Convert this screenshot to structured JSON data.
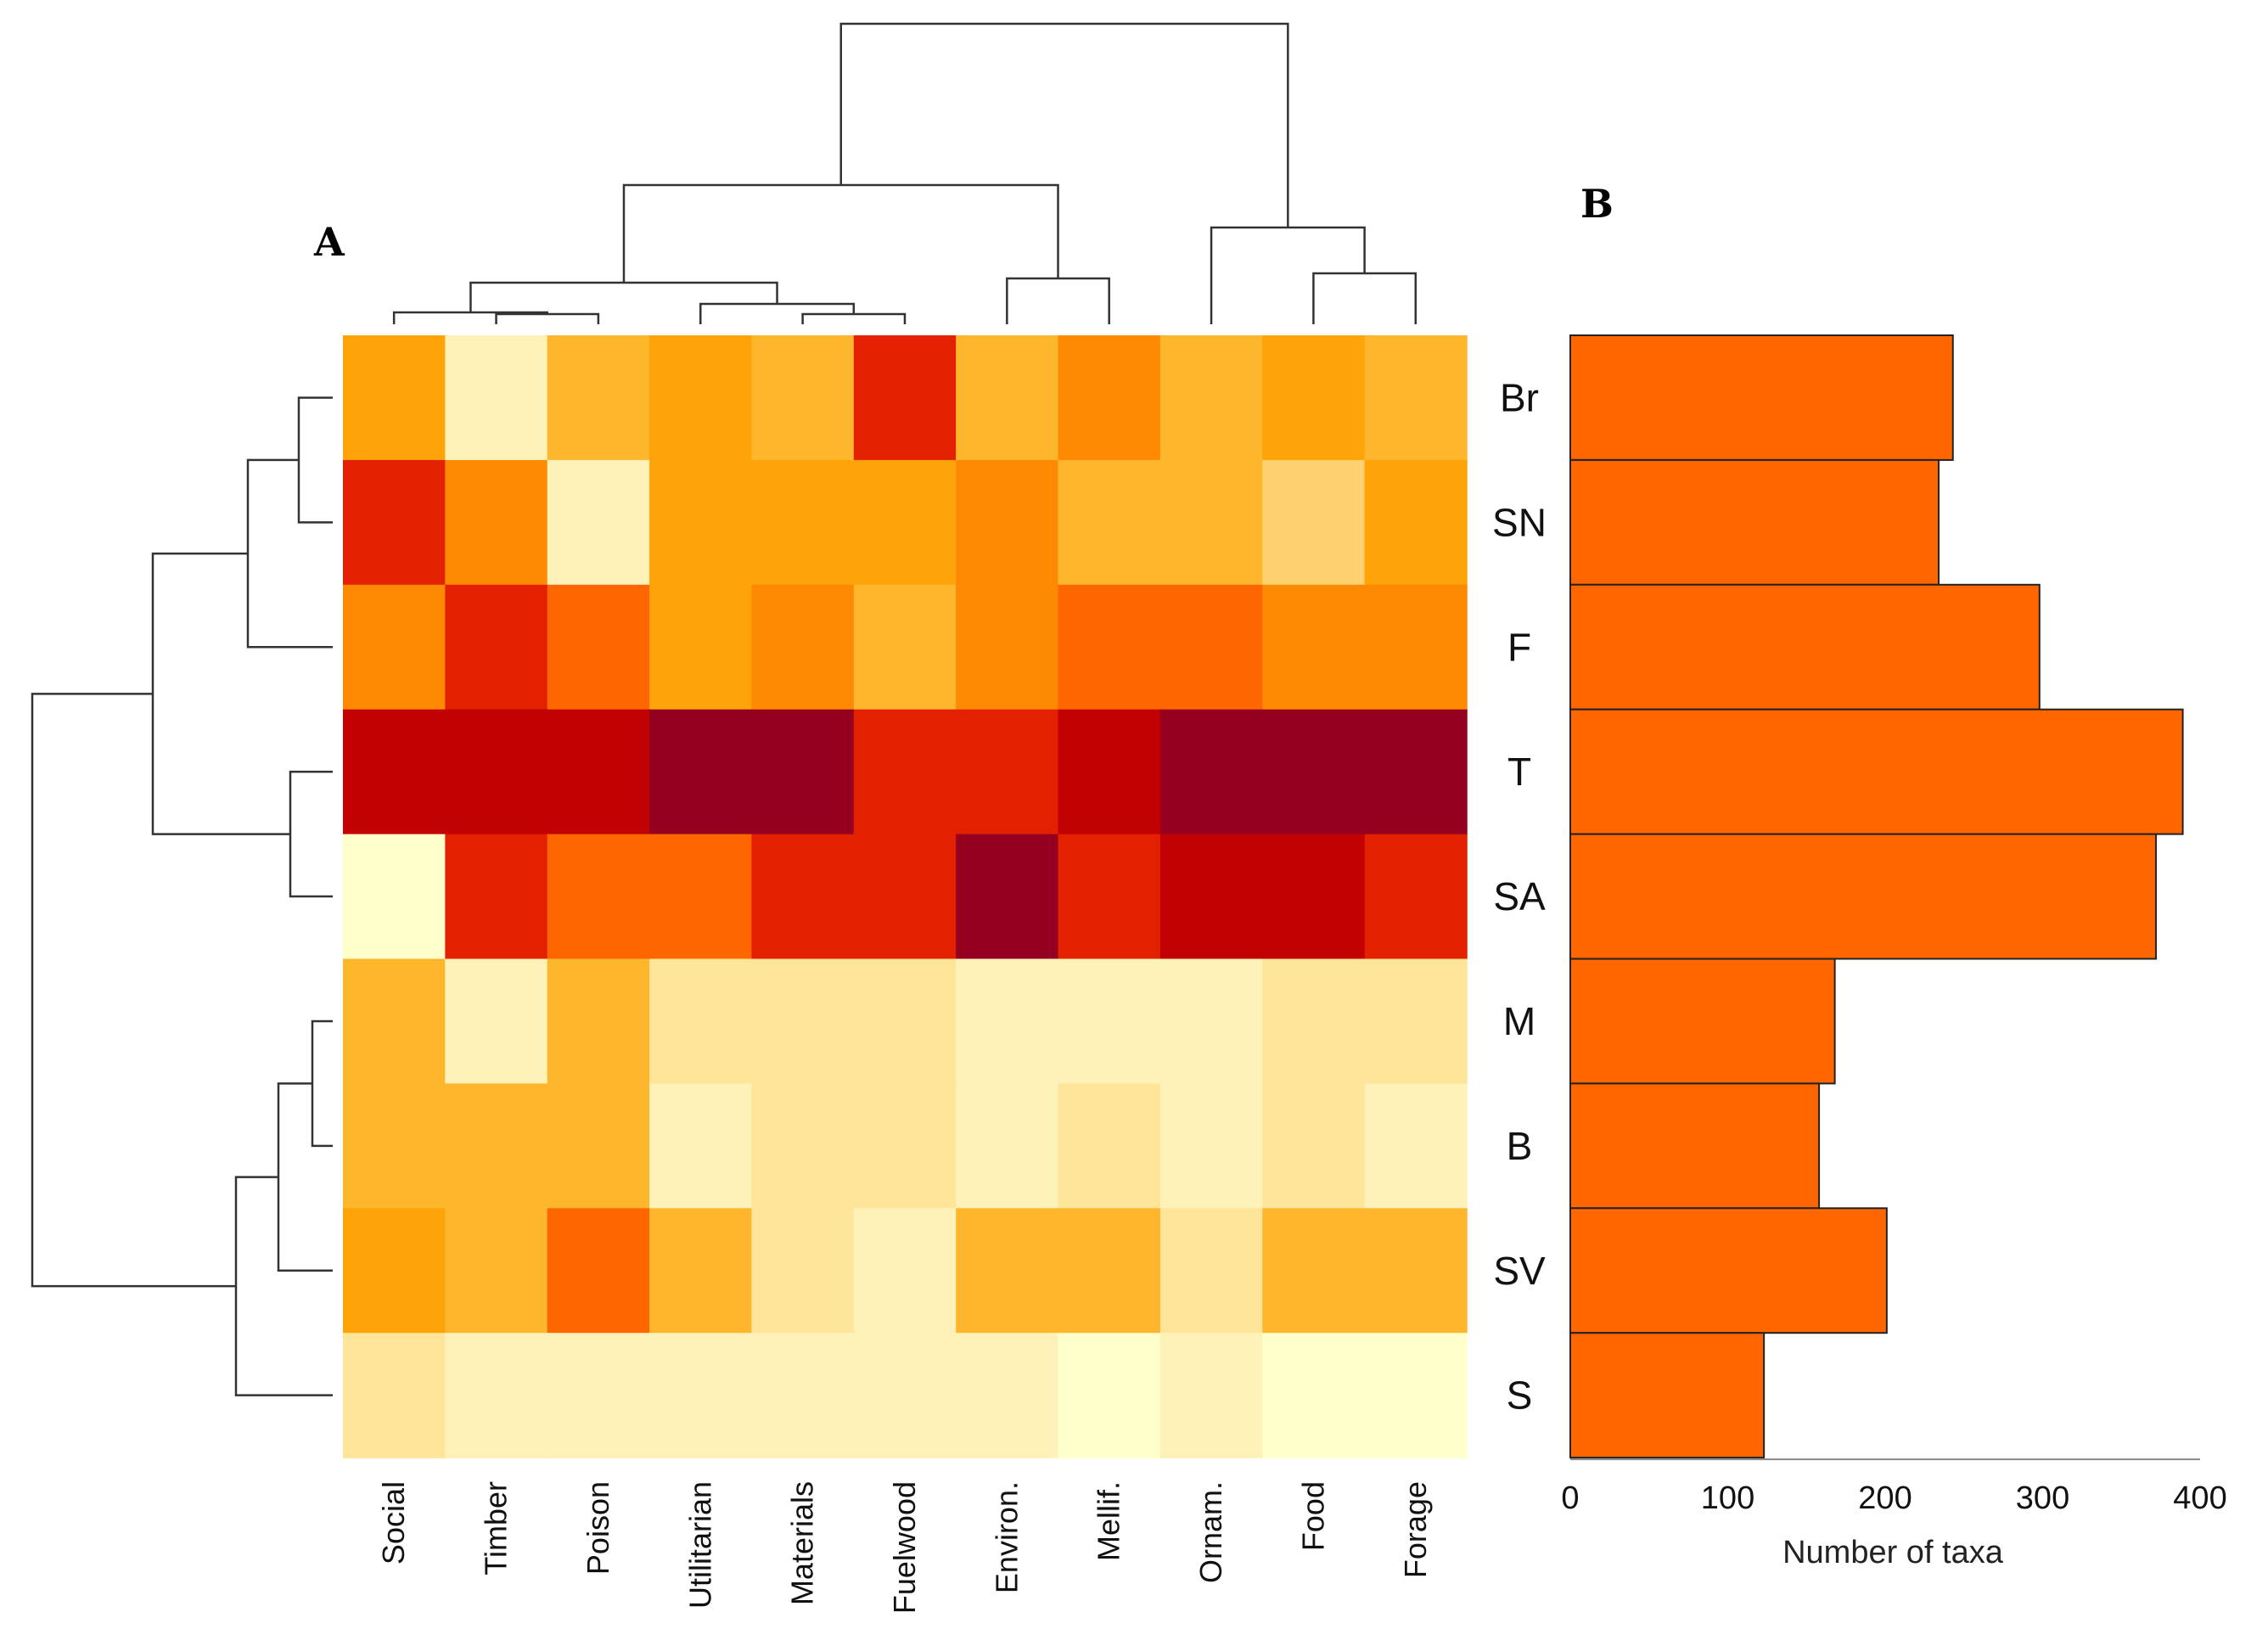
{
  "chart_data": [
    {
      "type": "heatmap",
      "panel_label": "A",
      "rows": [
        "Br",
        "SN",
        "F",
        "T",
        "SA",
        "M",
        "B",
        "SV",
        "S"
      ],
      "columns": [
        "Social",
        "Timber",
        "Poison",
        "Utilitarian",
        "Materials",
        "Fuelwood",
        "Environ.",
        "Mellif.",
        "Ornam.",
        "Food",
        "Forage"
      ],
      "values": [
        [
          4,
          1,
          3,
          4,
          3,
          7,
          3.5,
          5,
          3.5,
          4,
          3.5
        ],
        [
          7,
          5,
          0.5,
          4,
          4,
          4,
          5,
          3.5,
          3.5,
          2.5,
          4
        ],
        [
          5,
          7,
          6,
          4,
          5,
          3,
          5,
          6,
          6,
          5,
          5
        ],
        [
          8,
          8,
          8,
          9,
          9,
          7,
          7,
          8,
          9,
          9,
          9
        ],
        [
          0,
          7,
          6,
          6,
          7,
          7,
          9,
          7,
          8,
          8,
          7
        ],
        [
          3,
          1,
          3,
          2,
          2,
          2,
          1,
          1,
          1,
          1.5,
          2
        ],
        [
          3,
          3,
          3,
          1,
          2,
          2,
          1,
          2,
          1,
          1.5,
          1
        ],
        [
          4,
          3.5,
          6,
          3.5,
          2,
          1,
          3,
          3,
          2,
          3,
          3.5
        ],
        [
          2,
          1,
          0.5,
          0.5,
          1,
          1,
          1,
          0.3,
          1,
          0.4,
          0.2
        ]
      ],
      "color_scale": [
        "#ffffcc",
        "#fff2b8",
        "#fee59a",
        "#fed06f",
        "#feb62c",
        "#fea308",
        "#fe8a03",
        "#fe6601",
        "#fe3d01",
        "#e32000",
        "#c10102",
        "#960020"
      ],
      "column_dendrogram": true,
      "row_dendrogram": true
    },
    {
      "type": "bar",
      "panel_label": "B",
      "orientation": "horizontal",
      "categories": [
        "Br",
        "SN",
        "F",
        "T",
        "SA",
        "M",
        "B",
        "SV",
        "S"
      ],
      "values": [
        243,
        234,
        298,
        389,
        372,
        168,
        158,
        201,
        123
      ],
      "xlabel": "Number of taxa",
      "xlim": [
        0,
        400
      ],
      "xticks": [
        0,
        100,
        200,
        300,
        400
      ],
      "bar_color": "#ff6600"
    }
  ]
}
